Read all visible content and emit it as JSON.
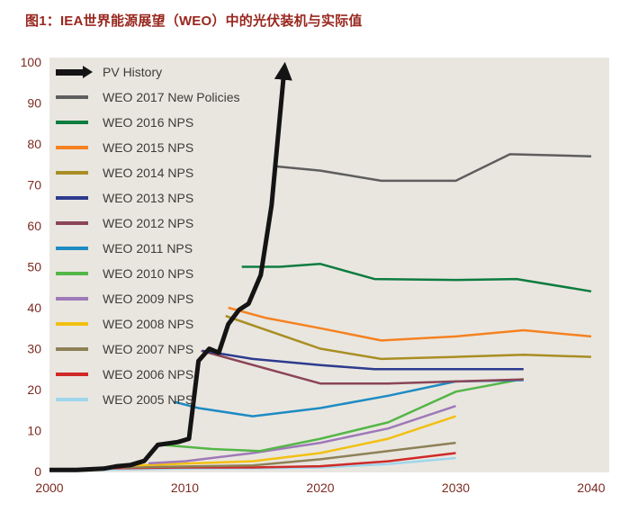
{
  "page": {
    "title": "图1：IEA世界能源展望（WEO）中的光伏装机与实际值"
  },
  "chart_data": {
    "type": "line",
    "title": "图1：IEA世界能源展望（WEO）中的光伏装机与实际值",
    "xlabel": "",
    "ylabel": "",
    "xlim": [
      2000,
      2041.5
    ],
    "ylim": [
      0,
      100
    ],
    "x_ticks": [
      2000,
      2010,
      2020,
      2030,
      2040
    ],
    "y_ticks": [
      0,
      10,
      20,
      30,
      40,
      50,
      60,
      70,
      80,
      90,
      100
    ],
    "grid": false,
    "legend_position": "top-left",
    "plot_bg": "#e9e6e0",
    "axis_label_color": "#7c2b22",
    "series": [
      {
        "name": "PV History",
        "color": "#141414",
        "width": 5,
        "arrow": true,
        "points": [
          [
            2000,
            0.4
          ],
          [
            2002,
            0.4
          ],
          [
            2004,
            0.7
          ],
          [
            2005,
            1.3
          ],
          [
            2006,
            1.6
          ],
          [
            2007,
            2.6
          ],
          [
            2008,
            6.5
          ],
          [
            2009.5,
            7.2
          ],
          [
            2010.3,
            8
          ],
          [
            2011,
            27
          ],
          [
            2011.8,
            30
          ],
          [
            2012.5,
            29
          ],
          [
            2013.2,
            36
          ],
          [
            2014,
            39.5
          ],
          [
            2014.7,
            41
          ],
          [
            2015.6,
            48
          ],
          [
            2016.4,
            65
          ],
          [
            2017.3,
            97
          ]
        ]
      },
      {
        "name": "WEO 2017 New Policies",
        "color": "#5e5e5e",
        "width": 2.5,
        "points": [
          [
            2016.8,
            74.5
          ],
          [
            2020,
            73.5
          ],
          [
            2024.5,
            71
          ],
          [
            2030,
            71
          ],
          [
            2034,
            77.5
          ],
          [
            2040,
            77
          ]
        ]
      },
      {
        "name": "WEO 2016 NPS",
        "color": "#0e7c3f",
        "width": 2.5,
        "points": [
          [
            2014.2,
            50
          ],
          [
            2017,
            50
          ],
          [
            2020,
            50.7
          ],
          [
            2024,
            47
          ],
          [
            2030,
            46.8
          ],
          [
            2034.5,
            47
          ],
          [
            2040,
            44
          ]
        ]
      },
      {
        "name": "WEO 2015 NPS",
        "color": "#f58220",
        "width": 2.5,
        "points": [
          [
            2013.2,
            40
          ],
          [
            2016,
            37.5
          ],
          [
            2020,
            35
          ],
          [
            2024.5,
            32
          ],
          [
            2030,
            33
          ],
          [
            2035,
            34.5
          ],
          [
            2040,
            33
          ]
        ]
      },
      {
        "name": "WEO 2014 NPS",
        "color": "#a98e23",
        "width": 2.5,
        "points": [
          [
            2013,
            38
          ],
          [
            2020,
            30
          ],
          [
            2024.5,
            27.5
          ],
          [
            2030,
            28
          ],
          [
            2035,
            28.5
          ],
          [
            2040,
            28
          ]
        ]
      },
      {
        "name": "WEO 2013 NPS",
        "color": "#2d3b8e",
        "width": 2.5,
        "points": [
          [
            2011.3,
            29.5
          ],
          [
            2015,
            27.5
          ],
          [
            2020,
            26
          ],
          [
            2024,
            25
          ],
          [
            2030,
            25
          ],
          [
            2035,
            25
          ]
        ]
      },
      {
        "name": "WEO 2012 NPS",
        "color": "#8b4557",
        "width": 2.5,
        "points": [
          [
            2011.2,
            29.5
          ],
          [
            2020,
            21.5
          ],
          [
            2025,
            21.5
          ],
          [
            2030,
            22
          ],
          [
            2035,
            22.5
          ]
        ]
      },
      {
        "name": "WEO 2011 NPS",
        "color": "#1e8bc3",
        "width": 2.5,
        "points": [
          [
            2009.2,
            17
          ],
          [
            2011,
            15.5
          ],
          [
            2015,
            13.5
          ],
          [
            2020,
            15.5
          ],
          [
            2025,
            18.5
          ],
          [
            2030,
            22
          ],
          [
            2035,
            22.3
          ]
        ]
      },
      {
        "name": "WEO 2010 NPS",
        "color": "#55b648",
        "width": 2.5,
        "points": [
          [
            2008.3,
            6.5
          ],
          [
            2012,
            5.5
          ],
          [
            2015.5,
            5
          ],
          [
            2020,
            8
          ],
          [
            2025,
            12
          ],
          [
            2030,
            19.5
          ],
          [
            2035,
            22.6
          ]
        ]
      },
      {
        "name": "WEO 2009 NPS",
        "color": "#9f79b8",
        "width": 2.5,
        "points": [
          [
            2007.3,
            2
          ],
          [
            2010,
            2.5
          ],
          [
            2015,
            4.5
          ],
          [
            2020,
            7
          ],
          [
            2025,
            10.5
          ],
          [
            2030,
            16
          ]
        ]
      },
      {
        "name": "WEO 2008 NPS",
        "color": "#f2c012",
        "width": 2.5,
        "points": [
          [
            2006.3,
            1.5
          ],
          [
            2015,
            2.5
          ],
          [
            2020,
            4.5
          ],
          [
            2025,
            8
          ],
          [
            2030,
            13.5
          ]
        ]
      },
      {
        "name": "WEO 2007 NPS",
        "color": "#8d8157",
        "width": 2.5,
        "points": [
          [
            2005.3,
            1
          ],
          [
            2015,
            1.5
          ],
          [
            2020,
            3
          ],
          [
            2025,
            5
          ],
          [
            2030,
            7
          ]
        ]
      },
      {
        "name": "WEO 2006 NPS",
        "color": "#cf2a27",
        "width": 2.5,
        "points": [
          [
            2004.3,
            0.8
          ],
          [
            2010,
            1
          ],
          [
            2015,
            1
          ],
          [
            2020,
            1.3
          ],
          [
            2025,
            2.5
          ],
          [
            2030,
            4.5
          ]
        ]
      },
      {
        "name": "WEO 2005 NPS",
        "color": "#9fd6ec",
        "width": 2.5,
        "points": [
          [
            2003.5,
            0.4
          ],
          [
            2010,
            0.7
          ],
          [
            2015,
            0.8
          ],
          [
            2020,
            1
          ],
          [
            2025,
            1.8
          ],
          [
            2030,
            3.3
          ]
        ]
      }
    ]
  }
}
